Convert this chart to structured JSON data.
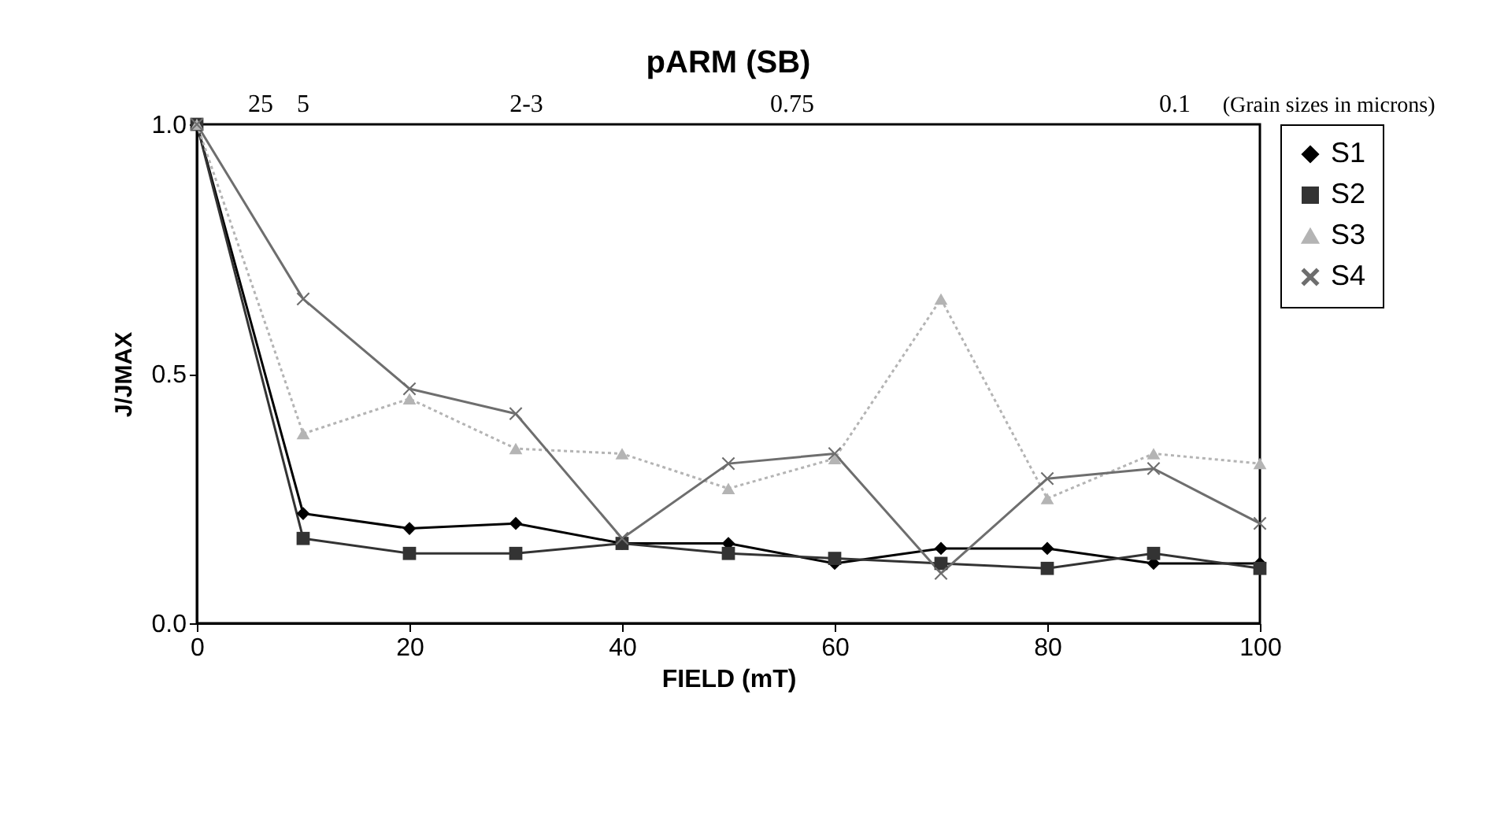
{
  "chart_data": {
    "type": "line",
    "title": "pARM (SB)",
    "xlabel": "FIELD (mT)",
    "ylabel": "J/JMAX",
    "x": [
      0,
      10,
      20,
      30,
      40,
      50,
      60,
      70,
      80,
      90,
      100
    ],
    "series": [
      {
        "name": "S1",
        "color": "#000000",
        "marker": "diamond",
        "line_style": "solid",
        "values": [
          1.0,
          0.22,
          0.19,
          0.2,
          0.16,
          0.16,
          0.12,
          0.15,
          0.15,
          0.12,
          0.12
        ]
      },
      {
        "name": "S2",
        "color": "#333333",
        "marker": "square",
        "line_style": "solid",
        "values": [
          1.0,
          0.17,
          0.14,
          0.14,
          0.16,
          0.14,
          0.13,
          0.12,
          0.11,
          0.14,
          0.11
        ]
      },
      {
        "name": "S3",
        "color": "#b4b4b4",
        "marker": "triangle",
        "line_style": "dotted",
        "values": [
          1.0,
          0.38,
          0.45,
          0.35,
          0.34,
          0.27,
          0.33,
          0.65,
          0.25,
          0.34,
          0.32
        ]
      },
      {
        "name": "S4",
        "color": "#6e6e6e",
        "marker": "cross",
        "line_style": "solid",
        "values": [
          1.0,
          0.65,
          0.47,
          0.42,
          0.17,
          0.32,
          0.34,
          0.1,
          0.29,
          0.31,
          0.2
        ]
      }
    ],
    "xlim": [
      0,
      100
    ],
    "xticks": [
      0,
      20,
      40,
      60,
      80,
      100
    ],
    "ylim": [
      0,
      1.0
    ],
    "yticks": [
      {
        "value": 0,
        "label": "0.0"
      },
      {
        "value": 0.5,
        "label": "0.5"
      },
      {
        "value": 1.0,
        "label": "1.0"
      }
    ],
    "annotations": [
      "25",
      "5",
      "2-3",
      "0.75",
      "0.1",
      "(Grain sizes in microns)"
    ],
    "grid": false,
    "legend": "right"
  }
}
